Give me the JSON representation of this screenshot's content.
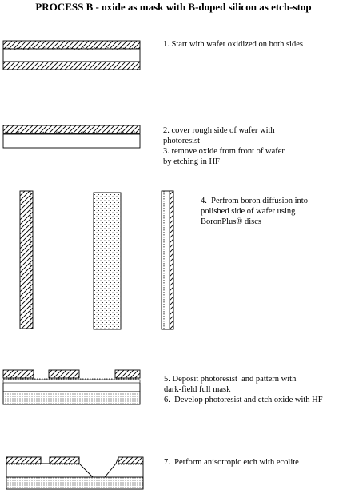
{
  "title": "PROCESS B - oxide as mask with B-doped silicon as etch-stop",
  "steps": {
    "s1": "1. Start with wafer oxidized on both sides",
    "s2a": "2. cover rough side of wafer with",
    "s2b": "photoresist",
    "s3a": "3. remove oxide from front of wafer",
    "s3b": "by etching in HF",
    "s4a": "4.  Perfrom boron diffusion into",
    "s4b": "polished side of wafer using",
    "s4c": "BoronPlus® discs",
    "s5a": "5. Deposit photoresist  and pattern with",
    "s5b": "dark-field full mask",
    "s6": "6.  Develop photoresist and etch oxide with HF",
    "s7": "7.  Perform anisotropic etch with ecolite"
  }
}
